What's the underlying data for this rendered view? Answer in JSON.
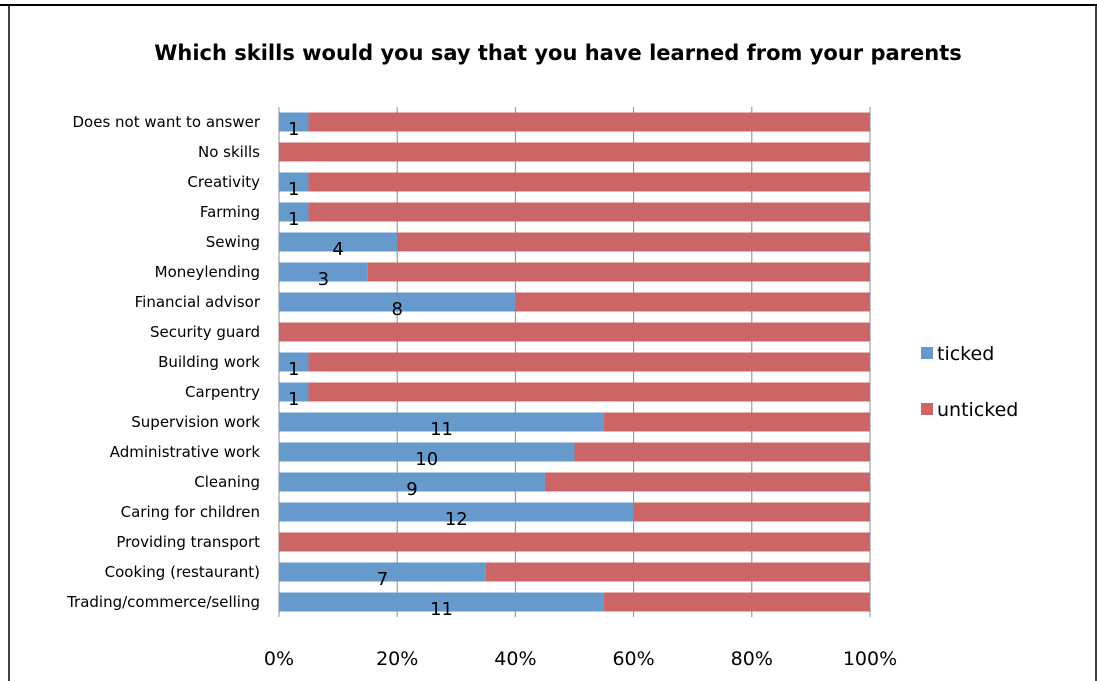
{
  "chart_data": {
    "type": "bar",
    "orientation": "horizontal",
    "stacked": "percent",
    "title": "Which skills would you say that you have learned from your parents",
    "categories": [
      "Does not want to answer",
      "No skills",
      "Creativity",
      "Farming",
      "Sewing",
      "Moneylending",
      "Financial advisor",
      "Security guard",
      "Building work",
      "Carpentry",
      "Supervision work",
      "Administrative work",
      "Cleaning",
      "Caring for children",
      "Providing transport",
      "Cooking (restaurant)",
      "Trading/commerce/selling"
    ],
    "series": [
      {
        "name": "ticked",
        "color": "#6699CC",
        "values": [
          1,
          0,
          1,
          1,
          4,
          3,
          8,
          0,
          1,
          1,
          11,
          10,
          9,
          12,
          0,
          7,
          11
        ],
        "percent": [
          5,
          0,
          5,
          5,
          20,
          15,
          40,
          0,
          5,
          5,
          55,
          50,
          45,
          60,
          0,
          35,
          55
        ],
        "data_labels": [
          "1",
          "",
          "1",
          "1",
          "4",
          "3",
          "8",
          "",
          "1",
          "1",
          "11",
          "10",
          "9",
          "12",
          "",
          "7",
          "11"
        ]
      },
      {
        "name": "unticked",
        "color": "#CC6666",
        "percent": [
          95,
          100,
          95,
          95,
          80,
          85,
          60,
          100,
          95,
          95,
          45,
          50,
          55,
          40,
          100,
          65,
          45
        ]
      }
    ],
    "xlim": [
      0,
      100
    ],
    "x_ticks": [
      "0%",
      "20%",
      "40%",
      "60%",
      "80%",
      "100%"
    ],
    "grid": "vertical",
    "legend_position": "right"
  }
}
